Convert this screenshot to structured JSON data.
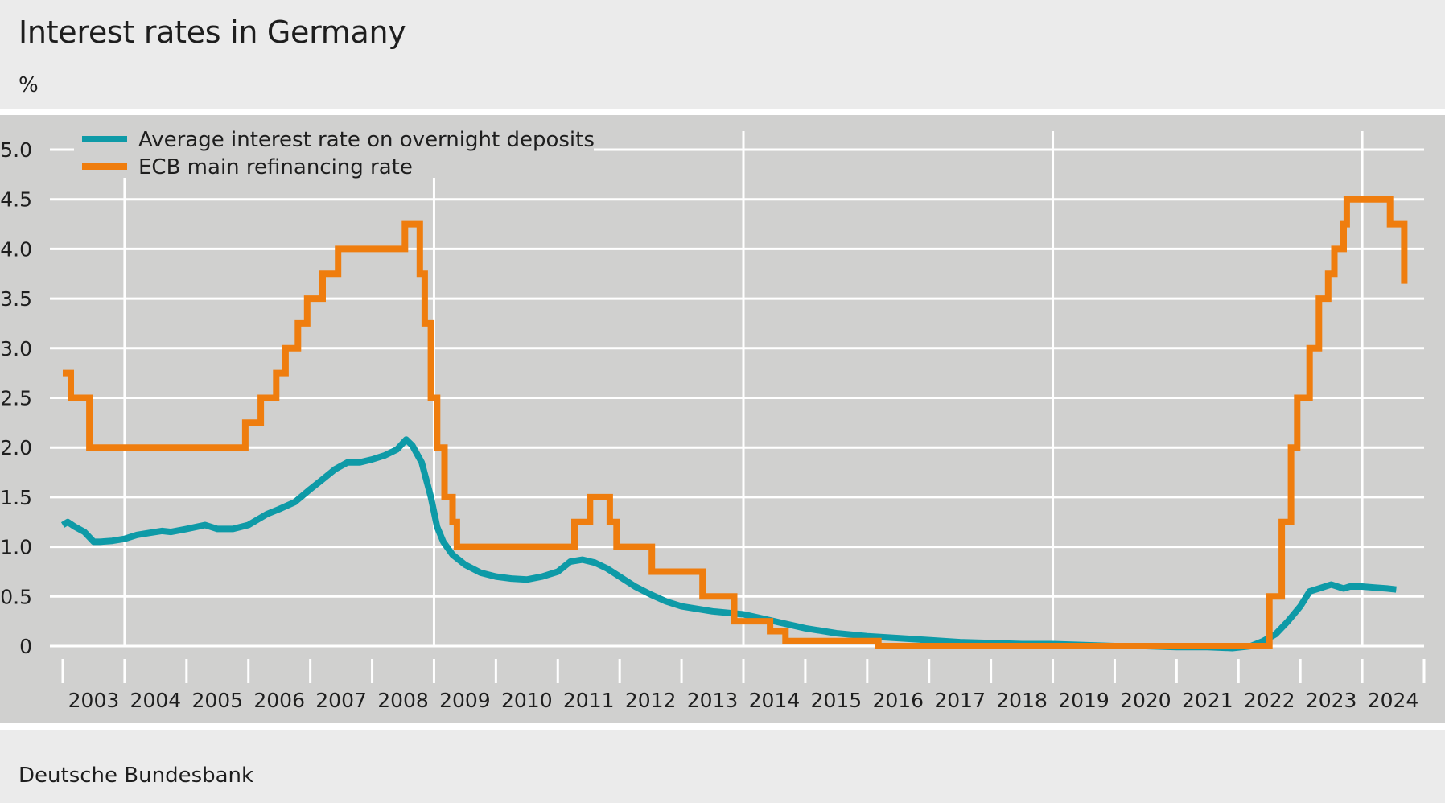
{
  "header": {
    "title": "Interest rates in Germany",
    "unit": "%"
  },
  "footer": {
    "source": "Deutsche Bundesbank"
  },
  "colors": {
    "background": "#ebebeb",
    "plot_background": "#d0d0cf",
    "gridline": "#ffffff",
    "overnight_deposits": "#0e9aa7",
    "ecb_rate": "#ef7d0e"
  },
  "chart_data": {
    "type": "line",
    "title": "Interest rates in Germany",
    "ylabel": "%",
    "ylim": [
      0,
      5.0
    ],
    "yticks": [
      0,
      0.5,
      1.0,
      1.5,
      2.0,
      2.5,
      3.0,
      3.5,
      4.0,
      4.5,
      5.0
    ],
    "ytick_labels": [
      "0",
      "0.5",
      "1.0",
      "1.5",
      "2.0",
      "2.5",
      "3.0",
      "3.5",
      "4.0",
      "4.5",
      "5.0"
    ],
    "x_categories": [
      "2003",
      "2004",
      "2005",
      "2006",
      "2007",
      "2008",
      "2009",
      "2010",
      "2011",
      "2012",
      "2013",
      "2014",
      "2015",
      "2016",
      "2017",
      "2018",
      "2019",
      "2020",
      "2021",
      "2022",
      "2023",
      "2024"
    ],
    "xlim": [
      2003.0,
      2025.0
    ],
    "grid": {
      "horizontal": true,
      "vertical_years": [
        "2004",
        "2009",
        "2014",
        "2019",
        "2024"
      ]
    },
    "legend_position": "top-left",
    "series": [
      {
        "name": "Average interest rate on overnight deposits",
        "color": "#0e9aa7",
        "style": "line",
        "x": [
          2003.0,
          2003.08,
          2003.2,
          2003.35,
          2003.5,
          2003.6,
          2003.8,
          2004.0,
          2004.2,
          2004.4,
          2004.6,
          2004.75,
          2005.0,
          2005.3,
          2005.5,
          2005.75,
          2006.0,
          2006.3,
          2006.5,
          2006.75,
          2007.0,
          2007.2,
          2007.4,
          2007.6,
          2007.8,
          2008.0,
          2008.2,
          2008.4,
          2008.55,
          2008.65,
          2008.8,
          2008.95,
          2009.05,
          2009.15,
          2009.3,
          2009.5,
          2009.75,
          2010.0,
          2010.25,
          2010.5,
          2010.75,
          2011.0,
          2011.2,
          2011.4,
          2011.6,
          2011.8,
          2012.0,
          2012.25,
          2012.5,
          2012.75,
          2013.0,
          2013.5,
          2014.0,
          2014.5,
          2015.0,
          2015.5,
          2016.0,
          2016.5,
          2017.0,
          2017.5,
          2018.0,
          2018.5,
          2019.0,
          2019.5,
          2020.0,
          2020.5,
          2021.0,
          2021.5,
          2021.9,
          2022.2,
          2022.4,
          2022.6,
          2022.8,
          2023.0,
          2023.15,
          2023.3,
          2023.5,
          2023.7,
          2023.8,
          2024.0,
          2024.2,
          2024.4,
          2024.55
        ],
        "y": [
          1.22,
          1.25,
          1.2,
          1.15,
          1.05,
          1.05,
          1.06,
          1.08,
          1.12,
          1.14,
          1.16,
          1.15,
          1.18,
          1.22,
          1.18,
          1.18,
          1.22,
          1.33,
          1.38,
          1.45,
          1.58,
          1.68,
          1.78,
          1.85,
          1.85,
          1.88,
          1.92,
          1.98,
          2.08,
          2.02,
          1.85,
          1.5,
          1.2,
          1.05,
          0.92,
          0.82,
          0.74,
          0.7,
          0.68,
          0.67,
          0.7,
          0.75,
          0.85,
          0.87,
          0.84,
          0.78,
          0.7,
          0.6,
          0.52,
          0.45,
          0.4,
          0.35,
          0.32,
          0.25,
          0.18,
          0.13,
          0.1,
          0.08,
          0.06,
          0.04,
          0.03,
          0.02,
          0.02,
          0.01,
          0.0,
          0.0,
          -0.01,
          -0.01,
          -0.02,
          0.0,
          0.05,
          0.12,
          0.25,
          0.4,
          0.55,
          0.58,
          0.62,
          0.58,
          0.6,
          0.6,
          0.59,
          0.58,
          0.57
        ]
      },
      {
        "name": "ECB main refinancing rate",
        "color": "#ef7d0e",
        "style": "step",
        "x": [
          2003.0,
          2003.13,
          2003.43,
          2005.95,
          2006.2,
          2006.45,
          2006.6,
          2006.8,
          2006.95,
          2007.2,
          2007.45,
          2008.53,
          2008.77,
          2008.85,
          2008.95,
          2009.05,
          2009.17,
          2009.3,
          2009.37,
          2011.27,
          2011.52,
          2011.84,
          2011.95,
          2012.52,
          2013.34,
          2013.85,
          2014.43,
          2014.68,
          2016.18,
          2022.5,
          2022.7,
          2022.85,
          2022.95,
          2023.15,
          2023.3,
          2023.45,
          2023.55,
          2023.7,
          2023.75,
          2024.45,
          2024.68
        ],
        "y": [
          2.75,
          2.5,
          2.0,
          2.25,
          2.5,
          2.75,
          3.0,
          3.25,
          3.5,
          3.75,
          4.0,
          4.25,
          3.75,
          3.25,
          2.5,
          2.0,
          1.5,
          1.25,
          1.0,
          1.25,
          1.5,
          1.25,
          1.0,
          0.75,
          0.5,
          0.25,
          0.15,
          0.05,
          0.0,
          0.5,
          1.25,
          2.0,
          2.5,
          3.0,
          3.5,
          3.75,
          4.0,
          4.25,
          4.5,
          4.25,
          3.65
        ]
      }
    ]
  }
}
